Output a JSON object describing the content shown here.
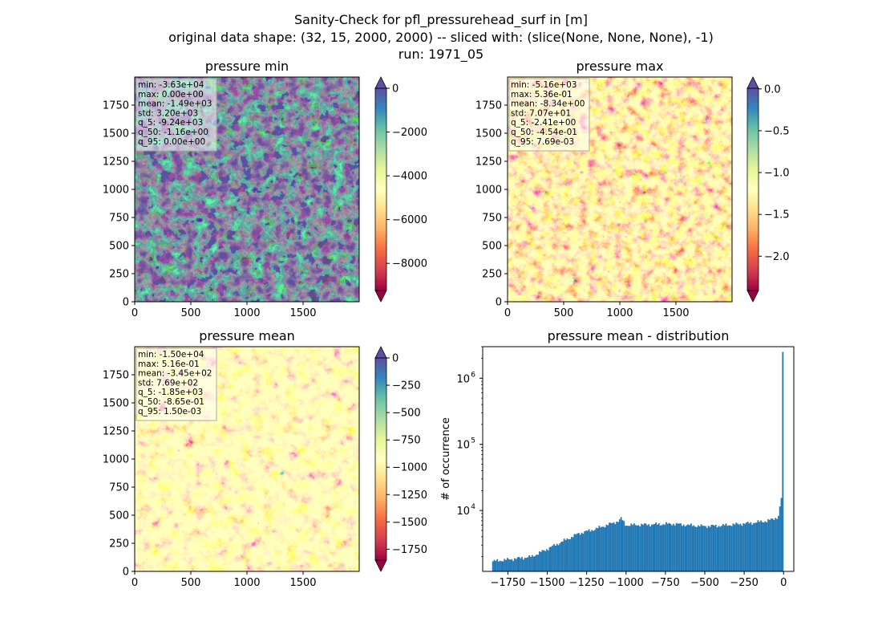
{
  "figure": {
    "title_lines": [
      "Sanity-Check for pfl_pressurehead_surf in [m]",
      "original data shape: (32, 15, 2000, 2000) -- sliced with: (slice(None, None, None), -1)",
      "run: 1971_05"
    ]
  },
  "colors": {
    "spectral": [
      "#9e0142",
      "#d53e4f",
      "#f46d43",
      "#fdae61",
      "#fee08b",
      "#ffffbf",
      "#e6f598",
      "#abdda4",
      "#66c2a5",
      "#3288bd",
      "#5e4fa2"
    ],
    "hist_bar": "#1f77b4"
  },
  "chart_data": [
    {
      "type": "heatmap",
      "title": "pressure min",
      "xlim": [
        0,
        2000
      ],
      "ylim": [
        0,
        2000
      ],
      "xticks": [
        "0",
        "500",
        "1000",
        "1500"
      ],
      "yticks": [
        "0",
        "250",
        "500",
        "750",
        "1000",
        "1250",
        "1500",
        "1750"
      ],
      "colorbar": {
        "range": [
          -9240,
          0
        ],
        "ticks": [
          0,
          -2000,
          -4000,
          -6000,
          -8000
        ],
        "tick_labels": [
          "0",
          "−2000",
          "−4000",
          "−6000",
          "−8000"
        ],
        "extend": "both",
        "cmap": "Spectral"
      },
      "stats": [
        "min: -3.63e+04",
        "max: 0.00e+00",
        "mean: -1.49e+03",
        "std: 3.20e+03",
        "q_5: -9.24e+03",
        "q_50: -1.16e+00",
        "q_95: 0.00e+00"
      ]
    },
    {
      "type": "heatmap",
      "title": "pressure max",
      "xlim": [
        0,
        2000
      ],
      "ylim": [
        0,
        2000
      ],
      "xticks": [
        "0",
        "500",
        "1000",
        "1500"
      ],
      "yticks": [
        "0",
        "250",
        "500",
        "750",
        "1000",
        "1250",
        "1500",
        "1750"
      ],
      "colorbar": {
        "range": [
          -2.41,
          0.0077
        ],
        "ticks": [
          0.0,
          -0.5,
          -1.0,
          -1.5,
          -2.0
        ],
        "tick_labels": [
          "0.0",
          "−0.5",
          "−1.0",
          "−1.5",
          "−2.0"
        ],
        "extend": "both",
        "cmap": "Spectral"
      },
      "stats": [
        "min: -5.16e+03",
        "max: 5.36e-01",
        "mean: -8.34e+00",
        "std: 7.07e+01",
        "q_5: -2.41e+00",
        "q_50: -4.54e-01",
        "q_95: 7.69e-03"
      ]
    },
    {
      "type": "heatmap",
      "title": "pressure mean",
      "xlim": [
        0,
        2000
      ],
      "ylim": [
        0,
        2000
      ],
      "xticks": [
        "0",
        "500",
        "1000",
        "1500"
      ],
      "yticks": [
        "0",
        "250",
        "500",
        "750",
        "1000",
        "1250",
        "1500",
        "1750"
      ],
      "colorbar": {
        "range": [
          -1850,
          0
        ],
        "ticks": [
          0,
          -250,
          -500,
          -750,
          -1000,
          -1250,
          -1500,
          -1750
        ],
        "tick_labels": [
          "0",
          "−250",
          "−500",
          "−750",
          "−1000",
          "−1250",
          "−1500",
          "−1750"
        ],
        "extend": "both",
        "cmap": "Spectral"
      },
      "stats": [
        "min: -1.50e+04",
        "max: 5.16e-01",
        "mean: -3.45e+02",
        "std: 7.69e+02",
        "q_5: -1.85e+03",
        "q_50: -8.65e-01",
        "q_95: 1.50e-03"
      ]
    },
    {
      "type": "bar",
      "title": "pressure mean - distribution",
      "ylabel": "# of occurrence",
      "yscale": "log",
      "xlim": [
        -1910,
        65
      ],
      "ylim": [
        1200,
        3000000
      ],
      "xticks": [
        -1750,
        -1500,
        -1250,
        -1000,
        -750,
        -500,
        -250,
        0
      ],
      "xtick_labels": [
        "−1750",
        "−1500",
        "−1250",
        "−1000",
        "−750",
        "−500",
        "−250",
        "0"
      ],
      "yticks": [
        10000,
        100000,
        1000000
      ],
      "ytick_labels": [
        "10",
        "10",
        "10"
      ],
      "ytick_exponents": [
        "4",
        "5",
        "6"
      ],
      "bin_range": [
        -1850,
        0
      ],
      "bin_count": 200,
      "profile_x": [
        -1850,
        -1600,
        -1450,
        -1300,
        -1200,
        -1050,
        -1030,
        -1000,
        -900,
        -700,
        -600,
        -520,
        -400,
        -300,
        -200,
        -100,
        -60,
        -20
      ],
      "profile_y": [
        1700,
        2000,
        3000,
        4500,
        5200,
        6900,
        7600,
        6000,
        6100,
        6300,
        6000,
        5800,
        5900,
        6200,
        6500,
        7000,
        7500,
        8500
      ],
      "last_bins_x": [
        -18.5,
        -9.25,
        0
      ],
      "last_bins_y": [
        11500,
        15500,
        2500000
      ]
    }
  ]
}
